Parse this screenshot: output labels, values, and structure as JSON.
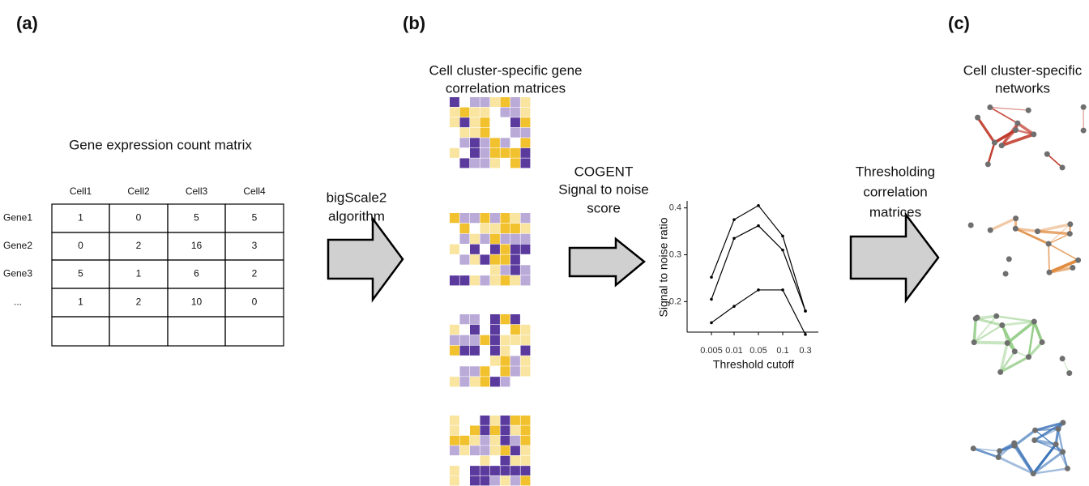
{
  "panel_a": {
    "label": "(a)",
    "title": "Gene expression count matrix",
    "table": {
      "header": [
        "Cell1",
        "Cell2",
        "Cell3",
        "Cell4"
      ],
      "rows": [
        [
          "Gene1",
          1,
          0,
          5,
          5
        ],
        [
          "Gene2",
          0,
          2,
          16,
          3
        ],
        [
          "Gene3",
          5,
          1,
          6,
          2
        ],
        [
          "...",
          1,
          2,
          10,
          0
        ]
      ]
    }
  },
  "step_1": [
    "bigScale2",
    "algorithm"
  ],
  "panel_b": {
    "label": "(b)",
    "title": [
      "Cell cluster-specific gene",
      "correlation matrices"
    ]
  },
  "step_2": [
    "COGENT",
    "Signal to noise",
    "score"
  ],
  "chart_data": {
    "type": "line",
    "x_label": "Threshold cutoff",
    "y_label": "Signal to noise ratio",
    "categories": [
      "0.005",
      "0.01",
      "0.05",
      "0.1",
      "0.3"
    ],
    "series": [
      {
        "color": "#000000",
        "values": [
          0.252,
          0.375,
          0.405,
          0.34,
          0.18
        ]
      },
      {
        "color": "#000000",
        "values": [
          0.205,
          0.335,
          0.362,
          0.31,
          0.18
        ]
      },
      {
        "color": "#000000",
        "values": [
          0.155,
          0.19,
          0.225,
          0.225,
          0.13
        ]
      }
    ],
    "ylim": [
      0.135,
      0.415
    ],
    "yticks": [
      0.2,
      0.3,
      0.4
    ]
  },
  "step_3": [
    "Thresholding",
    "correlation",
    "matrices"
  ],
  "panel_c": {
    "label": "(c)",
    "title": [
      "Cell cluster-specific",
      "networks"
    ]
  }
}
